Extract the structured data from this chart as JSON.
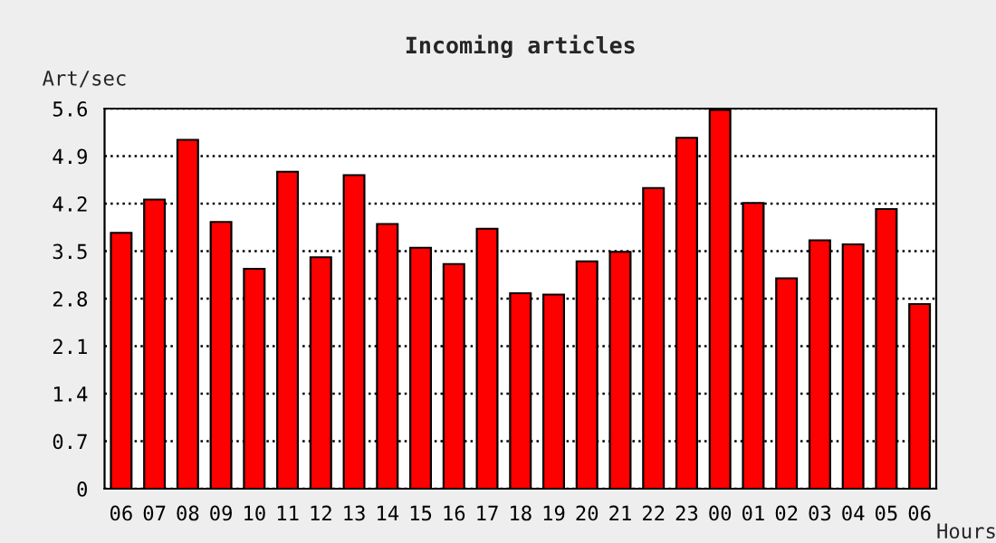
{
  "chart_data": {
    "type": "bar",
    "title": "Incoming articles",
    "xlabel": "Hours",
    "ylabel": "Art/sec",
    "categories": [
      "06",
      "07",
      "08",
      "09",
      "10",
      "11",
      "12",
      "13",
      "14",
      "15",
      "16",
      "17",
      "18",
      "19",
      "20",
      "21",
      "22",
      "23",
      "00",
      "01",
      "02",
      "03",
      "04",
      "05",
      "06"
    ],
    "values": [
      3.77,
      4.26,
      5.14,
      3.93,
      3.24,
      4.67,
      3.41,
      4.62,
      3.9,
      3.55,
      3.31,
      3.83,
      2.88,
      2.86,
      3.35,
      3.49,
      4.43,
      5.17,
      5.58,
      4.21,
      3.1,
      3.66,
      3.6,
      4.12,
      2.72
    ],
    "color": "#ff0000",
    "ylim": [
      0,
      5.6
    ],
    "yticks": [
      0,
      0.7,
      1.4,
      2.1,
      2.8,
      3.5,
      4.2,
      4.9,
      5.6
    ],
    "grid": "y",
    "line_style": "dotted"
  }
}
